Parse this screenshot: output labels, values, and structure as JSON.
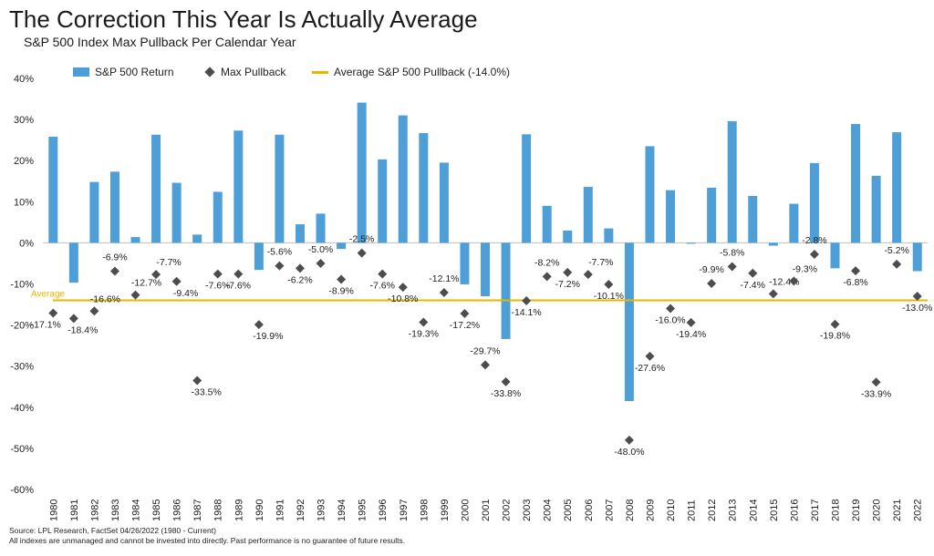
{
  "title": "The Correction This Year Is Actually Average",
  "subtitle": "S&P 500 Index Max Pullback Per Calendar Year",
  "legend": {
    "return_label": "S&P 500 Return",
    "pullback_label": "Max Pullback",
    "average_label": "Average S&P 500 Pullback (-14.0%)"
  },
  "average_label": "Average",
  "source_lines": [
    "Source: LPL Research, FactSet 04/26/2022 (1980 - Current)",
    "All indexes are unmanaged  and cannot be invested into directly. Past performance is no guarantee of future results."
  ],
  "colors": {
    "bar": "#4e9fd7",
    "diamond": "#4d4d4d",
    "average": "#e5b800",
    "avg_text": "#e5b800"
  },
  "chart_data": {
    "type": "bar",
    "categories": [
      "1980",
      "1981",
      "1982",
      "1983",
      "1984",
      "1985",
      "1986",
      "1987",
      "1988",
      "1989",
      "1990",
      "1991",
      "1992",
      "1993",
      "1994",
      "1995",
      "1996",
      "1997",
      "1998",
      "1999",
      "2000",
      "2001",
      "2002",
      "2003",
      "2004",
      "2005",
      "2006",
      "2007",
      "2008",
      "2009",
      "2010",
      "2011",
      "2012",
      "2013",
      "2014",
      "2015",
      "2016",
      "2017",
      "2018",
      "2019",
      "2020",
      "2021",
      "2022"
    ],
    "series": [
      {
        "name": "S&P 500 Return",
        "type": "bar",
        "values": [
          25.8,
          -9.7,
          14.8,
          17.3,
          1.4,
          26.3,
          14.6,
          2.0,
          12.4,
          27.3,
          -6.6,
          26.3,
          4.5,
          7.1,
          -1.5,
          34.1,
          20.3,
          31.0,
          26.7,
          19.5,
          -10.1,
          -13.0,
          -23.4,
          26.4,
          9.0,
          3.0,
          13.6,
          3.5,
          -38.5,
          23.5,
          12.8,
          0.0,
          13.4,
          29.6,
          11.4,
          -0.7,
          9.5,
          19.4,
          -6.2,
          28.9,
          16.3,
          26.9,
          -6.9
        ]
      },
      {
        "name": "Max Pullback",
        "type": "scatter",
        "values": [
          -17.1,
          -18.4,
          -16.6,
          -6.9,
          -12.7,
          -7.7,
          -9.4,
          -33.5,
          -7.6,
          -7.6,
          -19.9,
          -5.6,
          -6.2,
          -5.0,
          -8.9,
          -2.5,
          -7.6,
          -10.8,
          -19.3,
          -12.1,
          -17.2,
          -29.7,
          -33.8,
          -14.1,
          -8.2,
          -7.2,
          -7.7,
          -10.1,
          -48.0,
          -27.6,
          -16.0,
          -19.4,
          -9.9,
          -5.8,
          -7.4,
          -12.4,
          -9.3,
          -2.8,
          -19.8,
          -6.8,
          -33.9,
          -5.2,
          -13.0
        ],
        "labels": [
          "-17.1%",
          "-18.4%",
          "-16.6%",
          "-6.9%",
          "-12.7%",
          "-7.7%",
          "-9.4%",
          "-33.5%",
          "-7.6%",
          "-7.6%",
          "-19.9%",
          "-5.6%",
          "-6.2%",
          "-5.0%",
          "-8.9%",
          "-2.5%",
          "-7.6%",
          "-10.8%",
          "-19.3%",
          "-12.1%",
          "-17.2%",
          "-29.7%",
          "-33.8%",
          "-14.1%",
          "-8.2%",
          "-7.2%",
          "-7.7%",
          "-10.1%",
          "-48.0%",
          "-27.6%",
          "-16.0%",
          "-19.4%",
          "-9.9%",
          "-5.8%",
          "-7.4%",
          "-12.4%",
          "-9.3%",
          "-2.8%",
          "-19.8%",
          "-6.8%",
          "-33.9%",
          "-5.2%",
          "-13.0%"
        ]
      },
      {
        "name": "Average S&P 500 Pullback (-14.0%)",
        "type": "line",
        "value": -14.0
      }
    ],
    "ylim": [
      -60,
      40
    ],
    "yticks": [
      "40%",
      "30%",
      "20%",
      "10%",
      "0%",
      "-10%",
      "-20%",
      "-30%",
      "-40%",
      "-50%",
      "-60%"
    ],
    "ytick_values": [
      40,
      30,
      20,
      10,
      0,
      -10,
      -20,
      -30,
      -40,
      -50,
      -60
    ],
    "grid": false,
    "legend_position": "top-left"
  }
}
